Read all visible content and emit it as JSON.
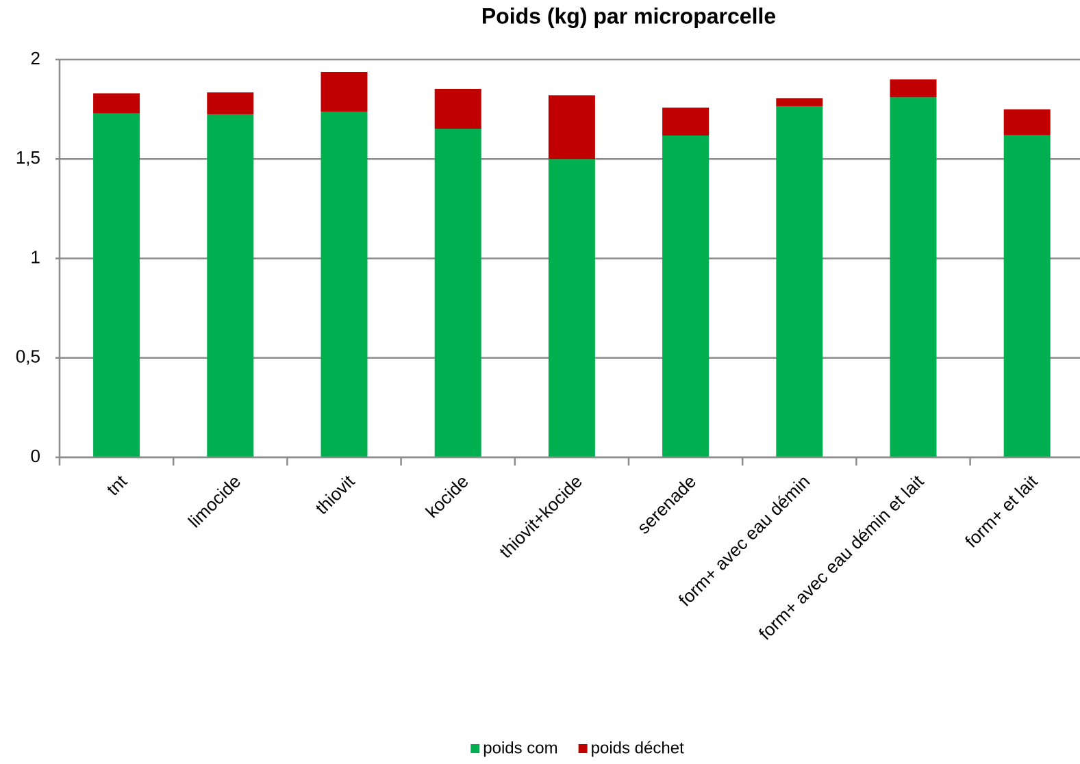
{
  "chart_data": {
    "type": "stacked_bar",
    "title": "Poids (kg) par microparcelle",
    "categories": [
      "tnt",
      "limocide",
      "thiovit",
      "kocide",
      "thiovit+kocide",
      "serenade",
      "form+ avec eau démin",
      "form+ avec eau démin et lait",
      "form+ et lait"
    ],
    "series": [
      {
        "name": "poids com",
        "color": "#00b050",
        "values": [
          1.73,
          1.725,
          1.738,
          1.652,
          1.5,
          1.618,
          1.766,
          1.81,
          1.62
        ]
      },
      {
        "name": "poids déchet",
        "color": "#c00000",
        "values": [
          0.1,
          0.11,
          0.2,
          0.2,
          0.32,
          0.14,
          0.04,
          0.09,
          0.13
        ]
      }
    ],
    "ylim": [
      0,
      2
    ],
    "yticks": [
      0,
      {
        "value": 0.5,
        "label": "0,5"
      },
      1,
      {
        "value": 1.5,
        "label": "1,5"
      },
      2
    ],
    "grid": true,
    "legend": "bottom"
  }
}
